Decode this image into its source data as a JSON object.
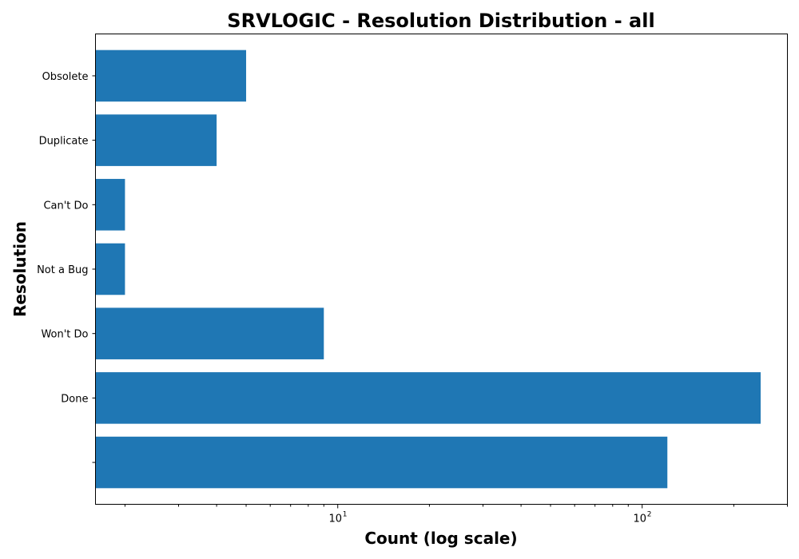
{
  "chart_data": {
    "type": "bar",
    "orientation": "horizontal",
    "title": "SRVLOGIC - Resolution Distribution - all",
    "xlabel": "Count (log scale)",
    "ylabel": "Resolution",
    "x_scale": "log",
    "xlim": [
      1.6,
      300
    ],
    "categories": [
      "",
      "Done",
      "Won't Do",
      "Not a Bug",
      "Can't Do",
      "Duplicate",
      "Obsolete"
    ],
    "values": [
      121,
      245,
      9,
      2,
      2,
      4,
      5
    ],
    "x_ticks": [
      {
        "base": "10",
        "exp": "1",
        "value": 10
      },
      {
        "base": "10",
        "exp": "2",
        "value": 100
      }
    ],
    "bar_color": "#1f77b4",
    "grid": false,
    "legend": "none"
  }
}
